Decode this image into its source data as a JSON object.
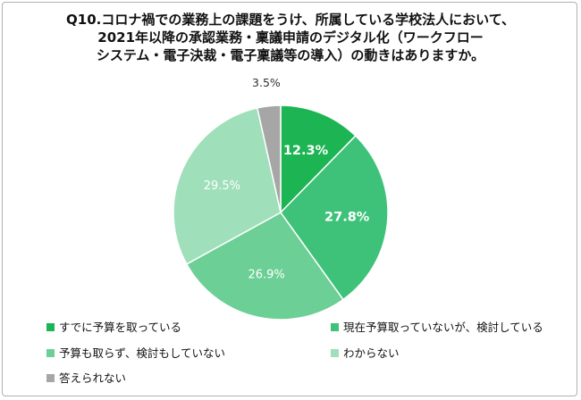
{
  "chart_data": {
    "type": "pie",
    "title": [
      "Q10.コロナ禍での業務上の課題をうけ、所属している学校法人において、",
      "2021年以降の承認業務・稟議申請のデジタル化（ワークフロー",
      "システム・電子決裁・電子稟議等の導入）の動きはありますか。"
    ],
    "categories": [
      "すでに予算を取っている",
      "現在予算取っていないが、検討している",
      "予算も取らず、検討もしていない",
      "わからない",
      "答えられない"
    ],
    "values": [
      12.3,
      27.8,
      26.9,
      29.5,
      3.5
    ],
    "labels": [
      "12.3%",
      "27.8%",
      "26.9%",
      "29.5%",
      "3.5%"
    ],
    "colors": [
      "#1db554",
      "#3ec27a",
      "#6ccf95",
      "#9fdfba",
      "#a6a6a6"
    ],
    "label_colors": [
      "#ffffff",
      "#ffffff",
      "#ffffff",
      "#ffffff",
      "#333333"
    ],
    "legend_position": "bottom"
  }
}
